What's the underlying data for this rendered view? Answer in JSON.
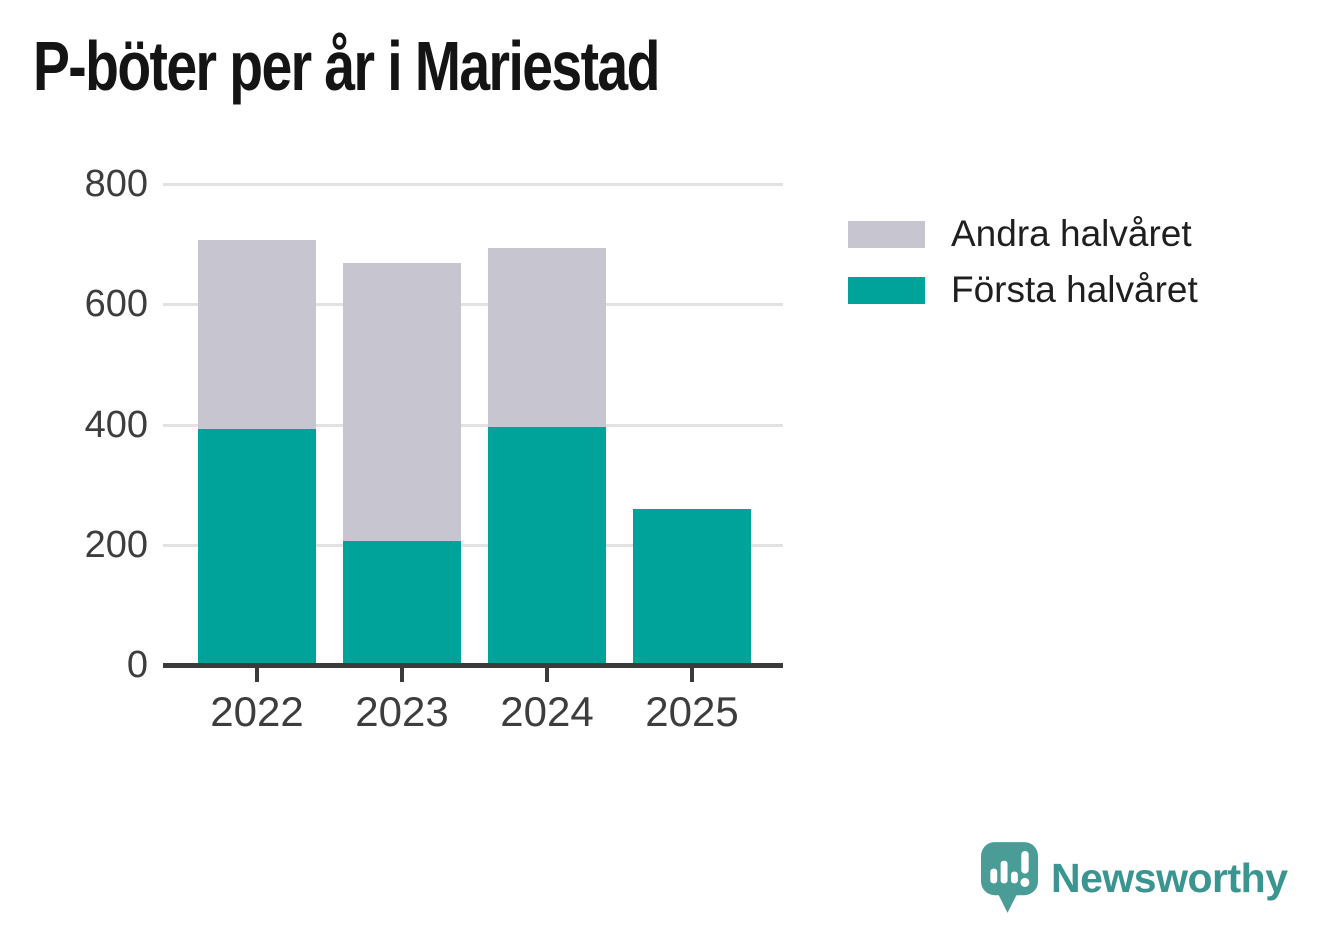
{
  "title": "P-böter per år i Mariestad",
  "legend": {
    "items": [
      {
        "label": "Andra halvåret",
        "color": "#c7c5cf"
      },
      {
        "label": "Första halvåret",
        "color": "#00a399"
      }
    ]
  },
  "chart_data": {
    "type": "bar",
    "stacked": true,
    "title": "P-böter per år i Mariestad",
    "categories": [
      "2022",
      "2023",
      "2024",
      "2025"
    ],
    "series": [
      {
        "name": "Första halvåret",
        "color": "#00a399",
        "values": [
          393,
          206,
          396,
          260
        ]
      },
      {
        "name": "Andra halvåret",
        "color": "#c7c5cf",
        "values": [
          315,
          462,
          298,
          0
        ]
      }
    ],
    "totals": [
      708,
      668,
      694,
      260
    ],
    "xlabel": "",
    "ylabel": "",
    "ylim": [
      0,
      800
    ],
    "yticks": [
      0,
      200,
      400,
      600,
      800
    ],
    "grid": true,
    "legend_position": "upper-right-outside"
  },
  "footer": {
    "brand": "Newsworthy"
  },
  "colors": {
    "first_half": "#00a399",
    "second_half": "#c7c5cf",
    "grid": "#e2e2e2",
    "axis": "#3b3b3b",
    "tick_text": "#3d3d3d",
    "title_text": "#141414",
    "logo": "#4a9c97",
    "wordmark": "#3a948f"
  }
}
